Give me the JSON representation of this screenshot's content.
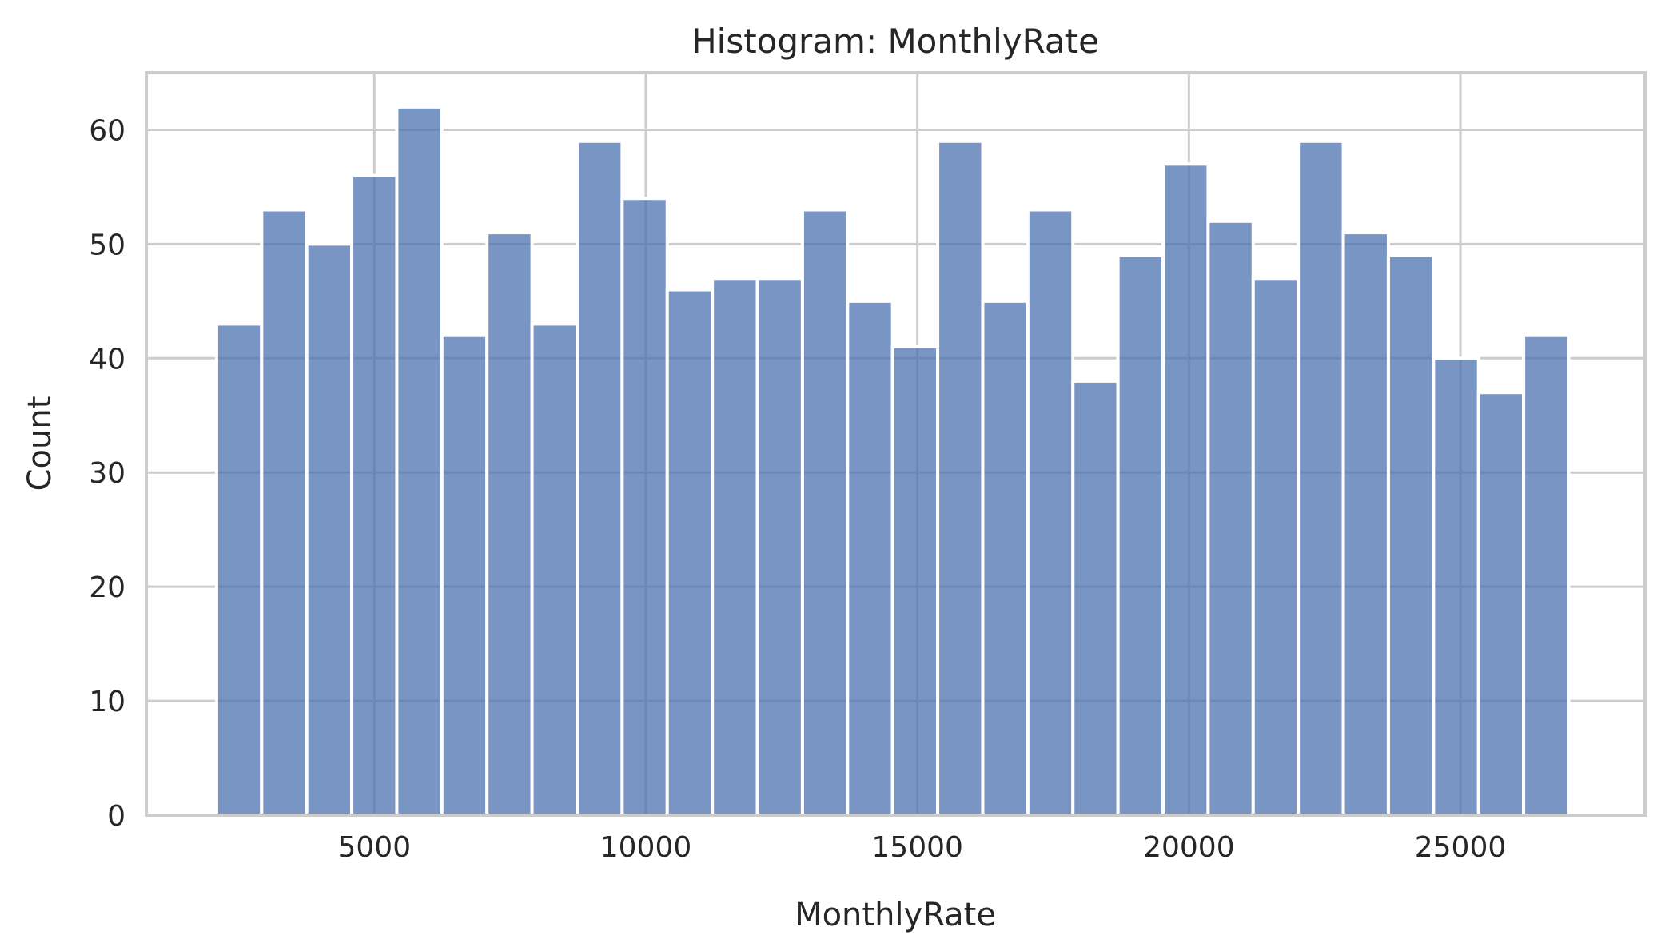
{
  "chart_data": {
    "type": "bar",
    "title": "Histogram: MonthlyRate",
    "xlabel": "MonthlyRate",
    "ylabel": "Count",
    "xlim": [
      800,
      28400
    ],
    "ylim": [
      0,
      65
    ],
    "xticks": [
      5000,
      10000,
      15000,
      20000,
      25000
    ],
    "yticks": [
      0,
      10,
      20,
      30,
      40,
      50,
      60
    ],
    "grid": true,
    "bar_color": "#4c72b0",
    "bar_opacity": 0.75,
    "bin_edges": [
      2094,
      2924,
      3754,
      4584,
      5414,
      6244,
      7074,
      7904,
      8734,
      9564,
      10394,
      11224,
      12054,
      12884,
      13714,
      14544,
      15374,
      16204,
      17034,
      17864,
      18694,
      19524,
      20354,
      21184,
      22014,
      22844,
      23674,
      24504,
      25334,
      26164,
      26994
    ],
    "values": [
      43,
      53,
      50,
      56,
      62,
      42,
      51,
      43,
      59,
      54,
      46,
      47,
      47,
      53,
      45,
      41,
      59,
      45,
      53,
      38,
      49,
      57,
      52,
      47,
      59,
      51,
      49,
      40,
      37,
      42
    ]
  }
}
